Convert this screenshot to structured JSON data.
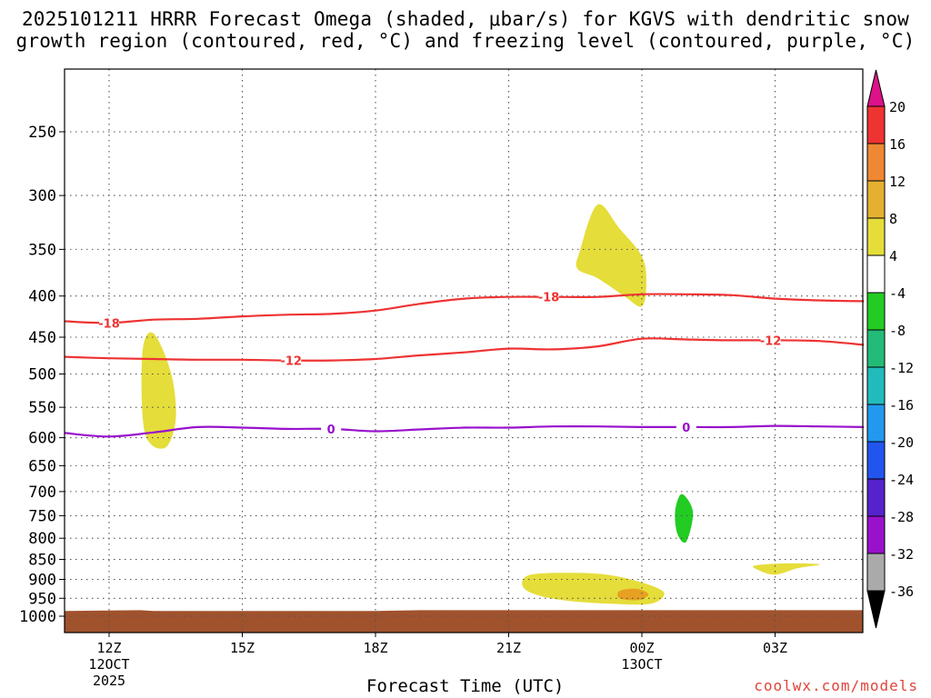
{
  "title_line1": "2025101211 HRRR Forecast Omega (shaded, μbar/s) for KGVS with dendritic snow",
  "title_line2": "growth region (contoured, red, °C) and freezing level (contoured, purple, °C)",
  "credit": "coolwx.com/models",
  "chart_data": {
    "type": "time-height cross section",
    "xlabel": "Forecast Time (UTC)",
    "ylabel": "",
    "x_ticks": [
      {
        "h": 0,
        "label": "12Z",
        "sub1": "12OCT",
        "sub2": "2025"
      },
      {
        "h": 3,
        "label": "15Z",
        "sub1": "",
        "sub2": ""
      },
      {
        "h": 6,
        "label": "18Z",
        "sub1": "",
        "sub2": ""
      },
      {
        "h": 9,
        "label": "21Z",
        "sub1": "",
        "sub2": ""
      },
      {
        "h": 12,
        "label": "00Z",
        "sub1": "13OCT",
        "sub2": ""
      },
      {
        "h": 15,
        "label": "03Z",
        "sub1": "",
        "sub2": ""
      }
    ],
    "xlim_hours": [
      -1,
      17
    ],
    "y_axis": "pressure (hPa), log scale, inverted",
    "ylim": [
      1050,
      200
    ],
    "y_ticks": [
      250,
      300,
      350,
      400,
      450,
      500,
      550,
      600,
      650,
      700,
      750,
      800,
      850,
      900,
      950,
      1000
    ],
    "grid": true,
    "contours": [
      {
        "name": "-18",
        "color": "#ee3333",
        "label": "-18",
        "points": [
          [
            -1,
            430
          ],
          [
            0,
            432
          ],
          [
            1,
            428
          ],
          [
            2,
            427
          ],
          [
            3,
            424
          ],
          [
            4,
            422
          ],
          [
            5,
            421
          ],
          [
            6,
            417
          ],
          [
            7,
            409
          ],
          [
            8,
            403
          ],
          [
            9,
            401
          ],
          [
            10,
            401
          ],
          [
            11,
            401
          ],
          [
            12,
            398
          ],
          [
            13,
            398
          ],
          [
            14,
            399
          ],
          [
            15,
            403
          ],
          [
            16,
            405
          ],
          [
            17,
            406
          ]
        ],
        "label_hours": [
          0,
          9.9
        ]
      },
      {
        "name": "-12",
        "color": "#ee3333",
        "label": "-12",
        "points": [
          [
            -1,
            476
          ],
          [
            0,
            478
          ],
          [
            1,
            479
          ],
          [
            2,
            480
          ],
          [
            3,
            480
          ],
          [
            4,
            481
          ],
          [
            5,
            481
          ],
          [
            6,
            479
          ],
          [
            7,
            474
          ],
          [
            8,
            470
          ],
          [
            9,
            465
          ],
          [
            10,
            466
          ],
          [
            11,
            462
          ],
          [
            12,
            452
          ],
          [
            13,
            453
          ],
          [
            14,
            454
          ],
          [
            15,
            454
          ],
          [
            16,
            455
          ],
          [
            17,
            460
          ]
        ],
        "label_hours": [
          4.1,
          14.9
        ]
      },
      {
        "name": "0",
        "color": "#9911cc",
        "label": "0",
        "points": [
          [
            -1,
            592
          ],
          [
            0,
            598
          ],
          [
            1,
            591
          ],
          [
            2,
            582
          ],
          [
            3,
            583
          ],
          [
            4,
            585
          ],
          [
            5,
            585
          ],
          [
            6,
            589
          ],
          [
            7,
            586
          ],
          [
            8,
            583
          ],
          [
            9,
            583
          ],
          [
            10,
            581
          ],
          [
            11,
            581
          ],
          [
            12,
            582
          ],
          [
            13,
            582
          ],
          [
            14,
            582
          ],
          [
            15,
            580
          ],
          [
            16,
            581
          ],
          [
            17,
            582
          ]
        ],
        "label_hours": [
          5.0,
          13.0
        ]
      }
    ],
    "shaded_regions": [
      {
        "level": "4 to 8",
        "color": "#e5dd3a",
        "polygon": [
          [
            1,
            445
          ],
          [
            1.4,
            500
          ],
          [
            1.5,
            570
          ],
          [
            1.25,
            618
          ],
          [
            0.8,
            590
          ],
          [
            0.75,
            470
          ]
        ]
      },
      {
        "level": "4 to 8",
        "color": "#e5dd3a",
        "polygon": [
          [
            10.6,
            352
          ],
          [
            11.0,
            308
          ],
          [
            11.5,
            330
          ],
          [
            12.0,
            357
          ],
          [
            12.1,
            385
          ],
          [
            12.0,
            412
          ],
          [
            11.6,
            400
          ],
          [
            11.0,
            380
          ],
          [
            10.55,
            370
          ]
        ]
      },
      {
        "level": "-8 to -4",
        "color": "#22cc22",
        "polygon": [
          [
            12.9,
            705
          ],
          [
            13.15,
            742
          ],
          [
            13.0,
            808
          ],
          [
            12.8,
            790
          ],
          [
            12.75,
            740
          ]
        ]
      },
      {
        "level": "4 to 8",
        "color": "#e5dd3a",
        "polygon": [
          [
            9.3,
            910
          ],
          [
            9.5,
            888
          ],
          [
            10.3,
            883
          ],
          [
            11.2,
            888
          ],
          [
            12.0,
            908
          ],
          [
            12.5,
            935
          ],
          [
            12.2,
            965
          ],
          [
            11.3,
            965
          ],
          [
            10.2,
            955
          ],
          [
            9.5,
            935
          ]
        ]
      },
      {
        "level": "8 to 12",
        "color": "#e8a020",
        "polygon": [
          [
            11.5,
            930
          ],
          [
            11.9,
            925
          ],
          [
            12.15,
            940
          ],
          [
            11.9,
            955
          ],
          [
            11.5,
            950
          ]
        ]
      },
      {
        "level": "4 to 8",
        "color": "#e5dd3a",
        "polygon": [
          [
            14.55,
            865
          ],
          [
            15.2,
            860
          ],
          [
            16.0,
            862
          ],
          [
            15.5,
            872
          ],
          [
            15.0,
            888
          ],
          [
            14.6,
            875
          ]
        ]
      }
    ],
    "terrain": {
      "color": "#a0522d",
      "surface_pressure": [
        [
          -1,
          985
        ],
        [
          0.7,
          983
        ],
        [
          1,
          985
        ],
        [
          6,
          985
        ],
        [
          7,
          983
        ],
        [
          17,
          983
        ]
      ]
    },
    "colorbar": {
      "labels": [
        "20",
        "16",
        "12",
        "8",
        "4",
        "-4",
        "-8",
        "-12",
        "-16",
        "-20",
        "-24",
        "-28",
        "-32",
        "-36"
      ],
      "over_color": "#dd1188",
      "under_color": "#000000",
      "colors": [
        "#ee3333",
        "#ee8833",
        "#e5b030",
        "#e5dd3a",
        "#ffffff",
        "#22cc22",
        "#22bb77",
        "#22bbbb",
        "#2299ee",
        "#2255ee",
        "#5522cc",
        "#9911cc",
        "#aaaaaa"
      ]
    }
  }
}
